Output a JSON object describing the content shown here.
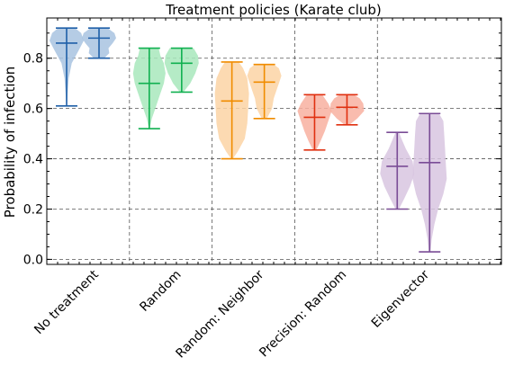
{
  "chart_data": {
    "type": "violin",
    "title": "Treatment policies (Karate club)",
    "ylabel": "Probability of infection",
    "xlabel": "",
    "ylim": [
      -0.02,
      0.96
    ],
    "yticks": [
      0.0,
      0.2,
      0.4,
      0.6,
      0.8
    ],
    "ytick_labels": [
      "0.0",
      "0.2",
      "0.4",
      "0.6",
      "0.8"
    ],
    "grid": true,
    "groups": [
      "No treatment",
      "Random",
      "Random: Neighbor",
      "Precision: Random",
      "Eigenvector"
    ],
    "series": [
      {
        "group": "No treatment",
        "color": "#1f5fa8",
        "fill": "#a8c3e0",
        "min": 0.61,
        "max": 0.92,
        "median": 0.86,
        "profile": [
          [
            0.61,
            0.02
          ],
          [
            0.66,
            0.06
          ],
          [
            0.72,
            0.12
          ],
          [
            0.78,
            0.3
          ],
          [
            0.83,
            0.7
          ],
          [
            0.87,
            1.0
          ],
          [
            0.9,
            0.85
          ],
          [
            0.92,
            0.5
          ]
        ]
      },
      {
        "group": "",
        "color": "#1f5fa8",
        "fill": "#a8c3e0",
        "min": 0.8,
        "max": 0.92,
        "median": 0.88,
        "profile": [
          [
            0.8,
            0.3
          ],
          [
            0.82,
            0.6
          ],
          [
            0.84,
            0.55
          ],
          [
            0.86,
            0.8
          ],
          [
            0.88,
            1.0
          ],
          [
            0.9,
            0.9
          ],
          [
            0.92,
            0.5
          ]
        ]
      },
      {
        "group": "Random",
        "color": "#10b050",
        "fill": "#a8e8bc",
        "min": 0.52,
        "max": 0.84,
        "median": 0.7,
        "profile": [
          [
            0.52,
            0.02
          ],
          [
            0.56,
            0.15
          ],
          [
            0.6,
            0.35
          ],
          [
            0.65,
            0.6
          ],
          [
            0.7,
            0.85
          ],
          [
            0.74,
            0.95
          ],
          [
            0.78,
            0.85
          ],
          [
            0.81,
            0.65
          ],
          [
            0.84,
            0.55
          ]
        ]
      },
      {
        "group": "",
        "color": "#10b050",
        "fill": "#a8e8bc",
        "min": 0.665,
        "max": 0.84,
        "median": 0.78,
        "profile": [
          [
            0.665,
            0.1
          ],
          [
            0.7,
            0.5
          ],
          [
            0.74,
            0.8
          ],
          [
            0.78,
            1.0
          ],
          [
            0.81,
            0.95
          ],
          [
            0.84,
            0.7
          ]
        ]
      },
      {
        "group": "Random: Neighbor",
        "color": "#f08c00",
        "fill": "#fcd4a4",
        "min": 0.4,
        "max": 0.785,
        "median": 0.63,
        "profile": [
          [
            0.4,
            0.05
          ],
          [
            0.43,
            0.35
          ],
          [
            0.48,
            0.75
          ],
          [
            0.54,
            0.9
          ],
          [
            0.6,
            0.95
          ],
          [
            0.66,
            1.0
          ],
          [
            0.72,
            0.9
          ],
          [
            0.76,
            0.65
          ],
          [
            0.785,
            0.4
          ]
        ]
      },
      {
        "group": "",
        "color": "#f08c00",
        "fill": "#fcd4a4",
        "min": 0.56,
        "max": 0.775,
        "median": 0.705,
        "profile": [
          [
            0.56,
            0.15
          ],
          [
            0.6,
            0.45
          ],
          [
            0.64,
            0.55
          ],
          [
            0.67,
            0.7
          ],
          [
            0.7,
            0.85
          ],
          [
            0.73,
            1.0
          ],
          [
            0.76,
            0.85
          ],
          [
            0.775,
            0.55
          ]
        ]
      },
      {
        "group": "Precision: Random",
        "color": "#e03010",
        "fill": "#f8b0a0",
        "min": 0.435,
        "max": 0.655,
        "median": 0.565,
        "profile": [
          [
            0.435,
            0.1
          ],
          [
            0.47,
            0.35
          ],
          [
            0.51,
            0.6
          ],
          [
            0.55,
            0.8
          ],
          [
            0.59,
            1.0
          ],
          [
            0.62,
            0.8
          ],
          [
            0.655,
            0.45
          ]
        ]
      },
      {
        "group": "",
        "color": "#e03010",
        "fill": "#f8b0a0",
        "min": 0.535,
        "max": 0.655,
        "median": 0.605,
        "profile": [
          [
            0.535,
            0.15
          ],
          [
            0.56,
            0.6
          ],
          [
            0.59,
            1.0
          ],
          [
            0.62,
            0.95
          ],
          [
            0.64,
            0.75
          ],
          [
            0.655,
            0.4
          ]
        ]
      },
      {
        "group": "Eigenvector",
        "color": "#7a4c96",
        "fill": "#d8c6e0",
        "min": 0.2,
        "max": 0.505,
        "median": 0.37,
        "profile": [
          [
            0.2,
            0.1
          ],
          [
            0.24,
            0.4
          ],
          [
            0.29,
            0.75
          ],
          [
            0.34,
            1.0
          ],
          [
            0.39,
            0.9
          ],
          [
            0.44,
            0.5
          ],
          [
            0.48,
            0.25
          ],
          [
            0.505,
            0.1
          ]
        ]
      },
      {
        "group": "",
        "color": "#7a4c96",
        "fill": "#d8c6e0",
        "min": 0.03,
        "max": 0.58,
        "median": 0.385,
        "profile": [
          [
            0.03,
            0.05
          ],
          [
            0.08,
            0.12
          ],
          [
            0.14,
            0.28
          ],
          [
            0.2,
            0.5
          ],
          [
            0.26,
            0.8
          ],
          [
            0.32,
            1.0
          ],
          [
            0.38,
            0.95
          ],
          [
            0.44,
            0.9
          ],
          [
            0.5,
            0.85
          ],
          [
            0.55,
            0.8
          ],
          [
            0.58,
            0.55
          ]
        ]
      }
    ]
  }
}
